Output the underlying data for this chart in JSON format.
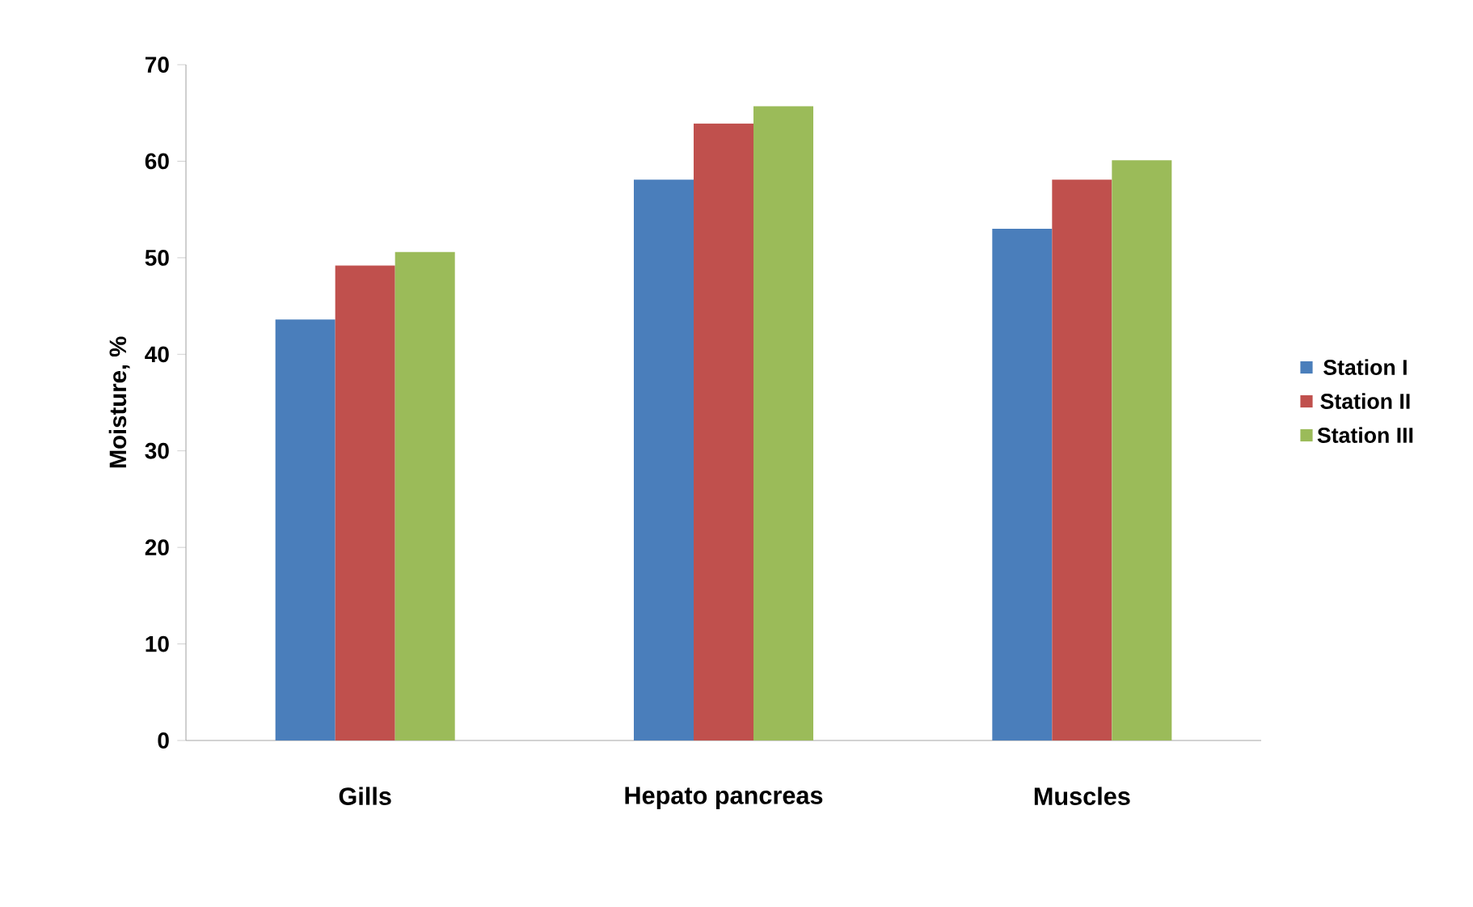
{
  "chart_data": {
    "type": "bar",
    "ylabel": "Moisture, %",
    "categories": [
      "Gills",
      "Hepato pancreas",
      "Muscles"
    ],
    "series": [
      {
        "name": "Station I",
        "color": "#4a7ebb",
        "values": [
          43.6,
          58.1,
          53.0
        ]
      },
      {
        "name": "Station II",
        "color": "#c0504d",
        "values": [
          49.2,
          63.9,
          58.1
        ]
      },
      {
        "name": "Station III",
        "color": "#9bbb59",
        "values": [
          50.6,
          65.7,
          60.1
        ]
      }
    ],
    "ylim": [
      0,
      70
    ],
    "yticks": [
      0,
      10,
      20,
      30,
      40,
      50,
      60,
      70
    ],
    "grid": false,
    "legend": "right"
  }
}
